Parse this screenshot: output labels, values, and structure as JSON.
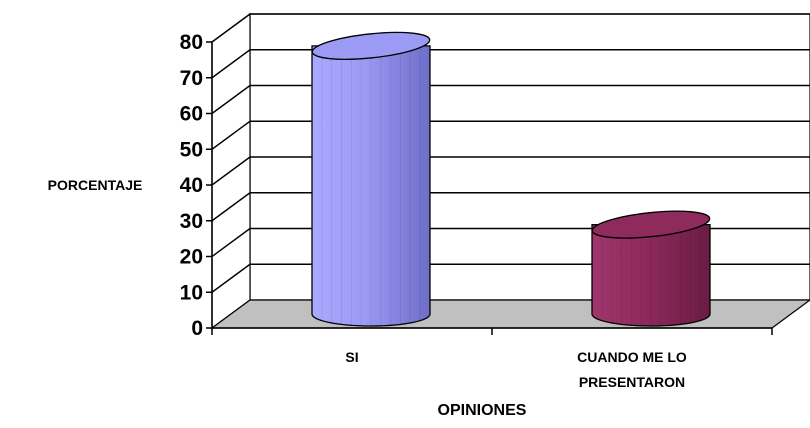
{
  "chart_data": {
    "type": "bar",
    "style": "3d-cylinder",
    "categories": [
      "SI",
      "CUANDO ME LO PRESENTARON"
    ],
    "category_lines": [
      [
        "SI"
      ],
      [
        "CUANDO ME LO",
        "PRESENTARON"
      ]
    ],
    "values": [
      75,
      25
    ],
    "colors": [
      "#9b9bf5",
      "#8e2a5c"
    ],
    "xlabel": "OPINIONES",
    "ylabel": "PORCENTAJE",
    "ylim": [
      0,
      80
    ],
    "yticks": [
      "0",
      "10",
      "20",
      "30",
      "40",
      "50",
      "60",
      "70",
      "80"
    ],
    "grid": true,
    "legend": "none"
  }
}
